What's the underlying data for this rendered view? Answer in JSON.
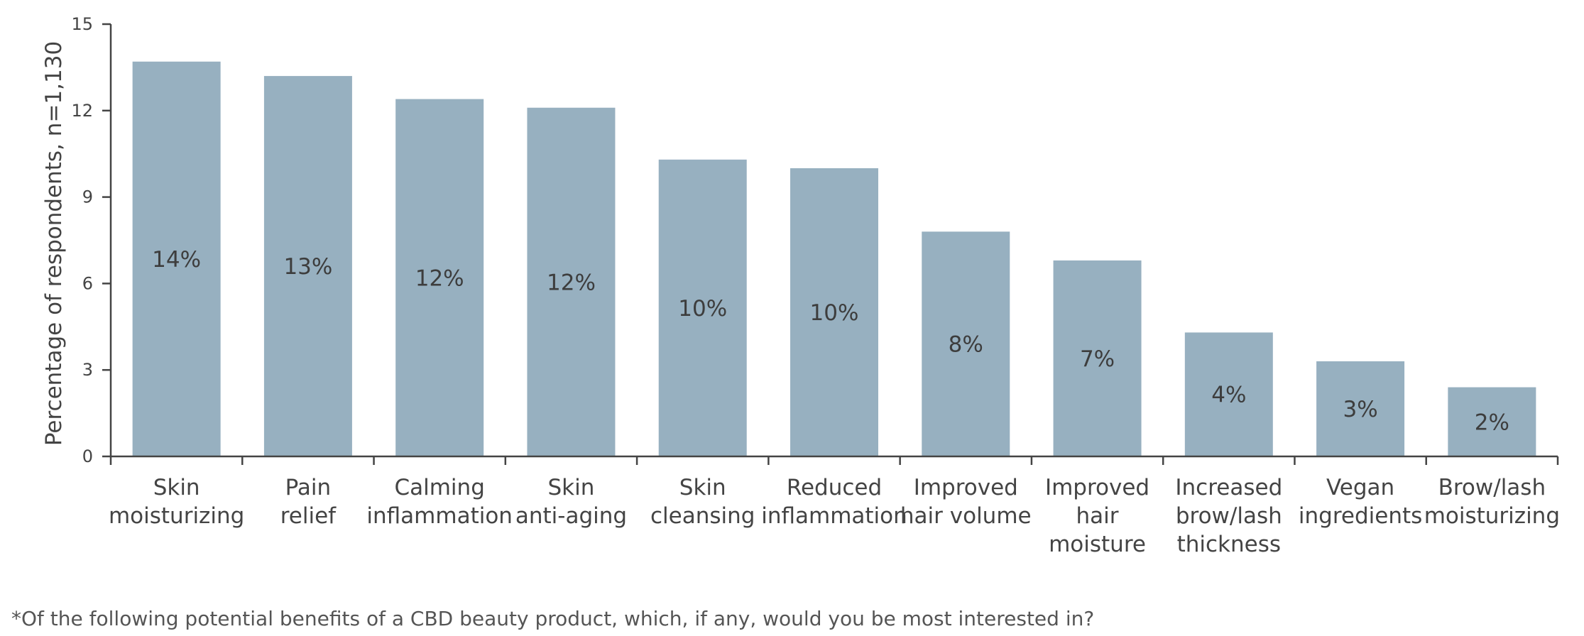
{
  "chart_data": {
    "type": "bar",
    "categories": [
      [
        "Skin",
        "moisturizing"
      ],
      [
        "Pain",
        "relief"
      ],
      [
        "Calming",
        "inflammation"
      ],
      [
        "Skin",
        "anti-aging"
      ],
      [
        "Skin",
        "cleansing"
      ],
      [
        "Reduced",
        "inflammation"
      ],
      [
        "Improved",
        "hair volume"
      ],
      [
        "Improved",
        "hair",
        "moisture"
      ],
      [
        "Increased",
        "brow/lash",
        "thickness"
      ],
      [
        "Vegan",
        "ingredients"
      ],
      [
        "Brow/lash",
        "moisturizing"
      ]
    ],
    "values": [
      13.7,
      13.2,
      12.4,
      12.1,
      10.3,
      10.0,
      7.8,
      6.8,
      4.3,
      3.3,
      2.4
    ],
    "data_labels": [
      "14%",
      "13%",
      "12%",
      "12%",
      "10%",
      "10%",
      "8%",
      "7%",
      "4%",
      "3%",
      "2%"
    ],
    "ylabel": "Percentage of respondents, n=1,130",
    "xlabel": "",
    "ylim": [
      0,
      15
    ],
    "yticks": [
      "0",
      "3",
      "6",
      "9",
      "12",
      "15"
    ],
    "grid": false,
    "colors": {
      "bar": "#97b0c0",
      "axis": "#444444",
      "tick_text": "#444444",
      "data_label": "#3d3d3d"
    }
  },
  "footnote": "*Of the following potential benefits of a CBD beauty product, which, if any, would you be most interested in?"
}
